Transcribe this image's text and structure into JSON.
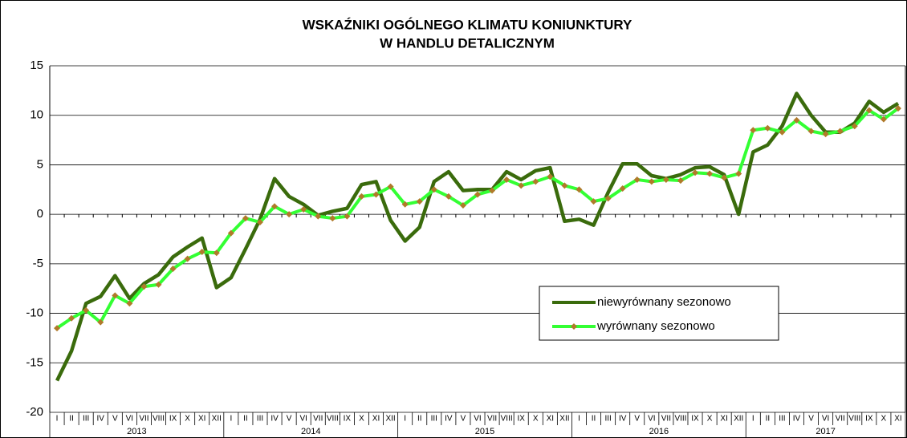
{
  "chart_data": {
    "type": "line",
    "title": [
      "WSKAŹNIKI OGÓLNEGO KLIMATU KONIUNKTURY",
      "W HANDLU DETALICZNYM"
    ],
    "categories": [
      "I",
      "II",
      "III",
      "IV",
      "V",
      "VI",
      "VII",
      "VIII",
      "IX",
      "X",
      "XI",
      "XII",
      "I",
      "II",
      "III",
      "IV",
      "V",
      "VI",
      "VII",
      "VIII",
      "IX",
      "X",
      "XI",
      "XII",
      "I",
      "II",
      "III",
      "IV",
      "V",
      "VI",
      "VII",
      "VIII",
      "IX",
      "X",
      "XI",
      "XII",
      "I",
      "II",
      "III",
      "IV",
      "V",
      "VI",
      "VII",
      "VIII",
      "IX",
      "X",
      "XI",
      "XII",
      "I",
      "II",
      "III",
      "IV",
      "V",
      "VI",
      "VII",
      "VIII",
      "IX",
      "X",
      "XI"
    ],
    "years": [
      "2013",
      "2014",
      "2015",
      "2016",
      "2017"
    ],
    "series": [
      {
        "name": "niewyrównany sezonowo",
        "color": "#3a6b0c",
        "values": [
          -16.8,
          -13.8,
          -9.0,
          -8.3,
          -6.2,
          -8.5,
          -7.0,
          -6.1,
          -4.3,
          -3.3,
          -2.4,
          -7.4,
          -6.4,
          -3.5,
          -0.5,
          3.6,
          1.8,
          1.0,
          -0.1,
          0.3,
          0.6,
          3.0,
          3.3,
          -0.6,
          -2.7,
          -1.3,
          3.3,
          4.3,
          2.4,
          2.5,
          2.5,
          4.3,
          3.5,
          4.4,
          4.7,
          -0.7,
          -0.5,
          -1.1,
          2.2,
          5.1,
          5.1,
          3.9,
          3.6,
          4.0,
          4.7,
          4.8,
          4.0,
          0.0,
          6.3,
          7.0,
          8.9,
          12.2,
          10.0,
          8.3,
          8.3,
          9.2,
          11.4,
          10.3,
          11.2
        ]
      },
      {
        "name": "wyrównany sezonowo",
        "color": "#33ff33",
        "marker_color": "#b07a2a",
        "values": [
          -11.5,
          -10.5,
          -9.7,
          -10.9,
          -8.2,
          -9.0,
          -7.3,
          -7.1,
          -5.5,
          -4.5,
          -3.8,
          -3.9,
          -1.9,
          -0.4,
          -0.8,
          0.8,
          0.0,
          0.5,
          -0.2,
          -0.4,
          -0.2,
          1.8,
          2.0,
          2.8,
          1.0,
          1.3,
          2.5,
          1.8,
          0.9,
          2.0,
          2.4,
          3.5,
          2.9,
          3.3,
          3.8,
          2.9,
          2.5,
          1.3,
          1.6,
          2.6,
          3.5,
          3.3,
          3.5,
          3.4,
          4.2,
          4.1,
          3.7,
          4.1,
          8.5,
          8.7,
          8.3,
          9.5,
          8.4,
          8.1,
          8.4,
          8.9,
          10.5,
          9.6,
          10.7
        ]
      }
    ],
    "ylim": [
      -20,
      15
    ],
    "yticks": [
      -20,
      -15,
      -10,
      -5,
      0,
      5,
      10,
      15
    ],
    "grid": true
  }
}
